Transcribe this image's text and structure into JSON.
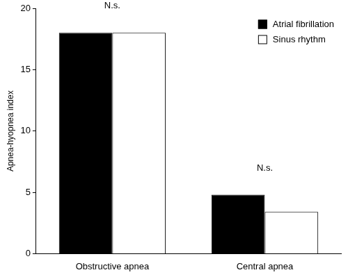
{
  "chart_data": {
    "type": "bar",
    "categories": [
      "Obstructive apnea",
      "Central apnea"
    ],
    "series": [
      {
        "name": "Atrial fibrillation",
        "color": "#000000",
        "values": [
          18,
          4.8
        ]
      },
      {
        "name": "Sinus rhythm",
        "color": "#ffffff",
        "values": [
          18,
          3.4
        ]
      }
    ],
    "y_label": "Apnea-hyopnea index",
    "ylim": [
      0,
      20
    ],
    "yticks": [
      0,
      5,
      10,
      15,
      20
    ],
    "grid": false,
    "legend": "upper right",
    "annotations": [
      {
        "text": "N.s.",
        "category": "Obstructive apnea"
      },
      {
        "text": "N.s.",
        "category": "Central apnea"
      }
    ]
  }
}
